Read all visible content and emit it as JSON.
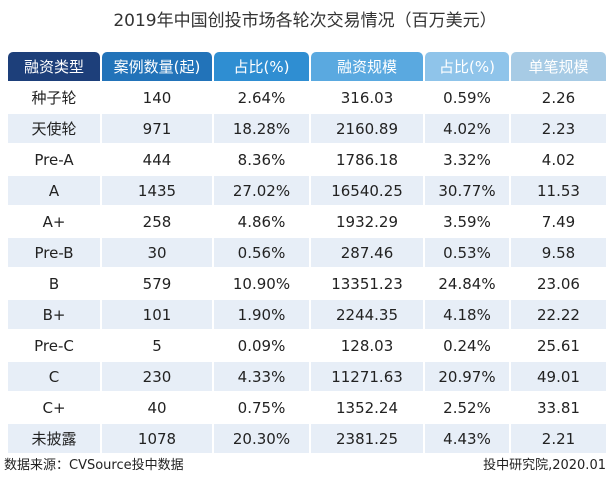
{
  "title": "2019年中国创投市场各轮次交易情况（百万美元）",
  "header_colors": [
    "#1d3f7a",
    "#2273b9",
    "#2f8ed2",
    "#5aa9e0",
    "#8fc4ea",
    "#a7cbe5"
  ],
  "columns": [
    "融资类型",
    "案例数量(起)",
    "占比(%)",
    "融资规模",
    "占比(%)",
    "单笔规模"
  ],
  "rows": [
    [
      "种子轮",
      "140",
      "2.64%",
      "316.03",
      "0.59%",
      "2.26"
    ],
    [
      "天使轮",
      "971",
      "18.28%",
      "2160.89",
      "4.02%",
      "2.23"
    ],
    [
      "Pre-A",
      "444",
      "8.36%",
      "1786.18",
      "3.32%",
      "4.02"
    ],
    [
      "A",
      "1435",
      "27.02%",
      "16540.25",
      "30.77%",
      "11.53"
    ],
    [
      "A+",
      "258",
      "4.86%",
      "1932.29",
      "3.59%",
      "7.49"
    ],
    [
      "Pre-B",
      "30",
      "0.56%",
      "287.46",
      "0.53%",
      "9.58"
    ],
    [
      "B",
      "579",
      "10.90%",
      "13351.23",
      "24.84%",
      "23.06"
    ],
    [
      "B+",
      "101",
      "1.90%",
      "2244.35",
      "4.18%",
      "22.22"
    ],
    [
      "Pre-C",
      "5",
      "0.09%",
      "128.03",
      "0.24%",
      "25.61"
    ],
    [
      "C",
      "230",
      "4.33%",
      "11271.63",
      "20.97%",
      "49.01"
    ],
    [
      "C+",
      "40",
      "0.75%",
      "1352.24",
      "2.52%",
      "33.81"
    ],
    [
      "未披露",
      "1078",
      "20.30%",
      "2381.25",
      "4.43%",
      "2.21"
    ]
  ],
  "footer": {
    "source": "数据来源：CVSource投中数据",
    "credit": "投中研究院,2020.01"
  }
}
